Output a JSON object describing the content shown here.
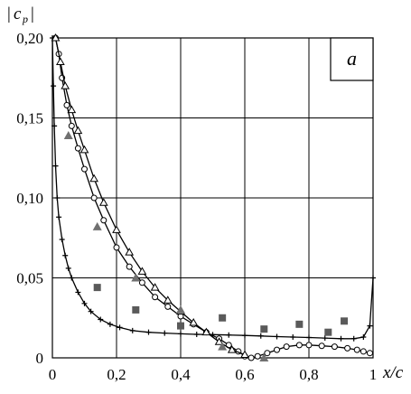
{
  "chart_data": {
    "type": "scatter",
    "title": "",
    "xlabel": "x/c",
    "ylabel": "|c p|",
    "ylabel_parts": {
      "bar_left": "|",
      "symbol": "c",
      "subscript": "p",
      "bar_right": "|"
    },
    "panel_label": "a",
    "xlim": [
      0,
      1
    ],
    "ylim": [
      0,
      0.2
    ],
    "grid": true,
    "legend": "none",
    "x_ticks": [
      {
        "value": 0,
        "label": "0"
      },
      {
        "value": 0.2,
        "label": "0,2"
      },
      {
        "value": 0.4,
        "label": "0,4"
      },
      {
        "value": 0.6,
        "label": "0,6"
      },
      {
        "value": 0.8,
        "label": "0,8"
      },
      {
        "value": 1.0,
        "label": "1"
      }
    ],
    "y_ticks": [
      {
        "value": 0,
        "label": "0"
      },
      {
        "value": 0.05,
        "label": "0,05"
      },
      {
        "value": 0.1,
        "label": "0,10"
      },
      {
        "value": 0.15,
        "label": "0,15"
      },
      {
        "value": 0.2,
        "label": "0,20"
      }
    ],
    "series": [
      {
        "marker": "plus",
        "color": "#000000",
        "style": "line-with-markers",
        "x": [
          0.0,
          0.003,
          0.006,
          0.01,
          0.015,
          0.02,
          0.03,
          0.04,
          0.05,
          0.06,
          0.08,
          0.1,
          0.12,
          0.15,
          0.18,
          0.21,
          0.25,
          0.3,
          0.35,
          0.4,
          0.45,
          0.5,
          0.55,
          0.6,
          0.65,
          0.7,
          0.75,
          0.8,
          0.85,
          0.9,
          0.94,
          0.97,
          0.99,
          1.0
        ],
        "y": [
          0.2,
          0.17,
          0.145,
          0.12,
          0.1,
          0.088,
          0.074,
          0.064,
          0.056,
          0.05,
          0.041,
          0.034,
          0.029,
          0.024,
          0.021,
          0.019,
          0.017,
          0.016,
          0.0155,
          0.015,
          0.0147,
          0.0145,
          0.0143,
          0.014,
          0.0137,
          0.0133,
          0.013,
          0.0127,
          0.0124,
          0.012,
          0.012,
          0.013,
          0.02,
          0.05
        ]
      },
      {
        "marker": "circle",
        "color": "#000000",
        "style": "line-with-markers",
        "x": [
          0.01,
          0.02,
          0.03,
          0.045,
          0.06,
          0.08,
          0.1,
          0.13,
          0.16,
          0.2,
          0.24,
          0.28,
          0.32,
          0.36,
          0.4,
          0.44,
          0.48,
          0.52,
          0.55,
          0.58,
          0.6,
          0.62,
          0.64,
          0.67,
          0.7,
          0.73,
          0.77,
          0.8,
          0.84,
          0.88,
          0.92,
          0.95,
          0.97,
          0.99
        ],
        "y": [
          0.2,
          0.19,
          0.175,
          0.158,
          0.145,
          0.131,
          0.118,
          0.1,
          0.086,
          0.069,
          0.057,
          0.047,
          0.038,
          0.032,
          0.026,
          0.021,
          0.016,
          0.012,
          0.008,
          0.004,
          0.001,
          0.0,
          0.001,
          0.003,
          0.005,
          0.007,
          0.008,
          0.008,
          0.0075,
          0.007,
          0.006,
          0.005,
          0.004,
          0.003
        ]
      },
      {
        "marker": "triangle-open",
        "color": "#000000",
        "style": "line-with-markers",
        "x": [
          0.01,
          0.025,
          0.04,
          0.06,
          0.08,
          0.1,
          0.13,
          0.16,
          0.2,
          0.24,
          0.28,
          0.32,
          0.36,
          0.4,
          0.44,
          0.48,
          0.52,
          0.56,
          0.6
        ],
        "y": [
          0.2,
          0.185,
          0.17,
          0.155,
          0.142,
          0.13,
          0.112,
          0.097,
          0.08,
          0.066,
          0.054,
          0.044,
          0.036,
          0.029,
          0.022,
          0.016,
          0.01,
          0.005,
          0.002
        ]
      },
      {
        "marker": "triangle-filled",
        "color": "#707070",
        "style": "markers",
        "x": [
          0.05,
          0.14,
          0.26,
          0.4,
          0.53,
          0.66
        ],
        "y": [
          0.139,
          0.082,
          0.05,
          0.03,
          0.007,
          0.0
        ]
      },
      {
        "marker": "square",
        "color": "#5a5a5a",
        "style": "markers",
        "x": [
          0.14,
          0.26,
          0.4,
          0.53,
          0.66,
          0.77,
          0.86,
          0.91
        ],
        "y": [
          0.044,
          0.03,
          0.02,
          0.025,
          0.018,
          0.021,
          0.016,
          0.023
        ]
      }
    ]
  }
}
